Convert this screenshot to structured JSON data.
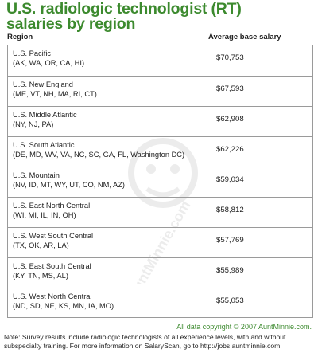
{
  "title_line1": "U.S. radiologic technologist (RT)",
  "title_line2": "salaries by region",
  "header": {
    "region": "Region",
    "salary": "Average base salary"
  },
  "chart_data": {
    "type": "table",
    "columns": [
      "Region",
      "Average base salary"
    ],
    "rows": [
      {
        "name": "U.S. Pacific",
        "states": "(AK, WA, OR, CA, HI)",
        "salary": "$70,753"
      },
      {
        "name": "U.S. New England",
        "states": "(ME, VT, NH, MA, RI, CT)",
        "salary": "$67,593"
      },
      {
        "name": "U.S. Middle Atlantic",
        "states": "(NY, NJ, PA)",
        "salary": "$62,908"
      },
      {
        "name": "U.S. South Atlantic",
        "states": "(DE, MD, WV, VA, NC, SC, GA, FL, Washington DC)",
        "salary": "$62,226"
      },
      {
        "name": "U.S. Mountain",
        "states": "(NV, ID, MT, WY, UT, CO, NM, AZ)",
        "salary": "$59,034"
      },
      {
        "name": "U.S. East North Central",
        "states": "(WI, MI, IL, IN, OH)",
        "salary": "$58,812"
      },
      {
        "name": "U.S. West South Central",
        "states": "(TX, OK, AR, LA)",
        "salary": "$57,769"
      },
      {
        "name": "U.S. East South Central",
        "states": "(KY, TN, MS, AL)",
        "salary": "$55,989"
      },
      {
        "name": "U.S. West North Central",
        "states": "(ND, SD, NE, KS, MN, IA, MO)",
        "salary": "$55,053"
      }
    ]
  },
  "copyright": "All data copyright © 2007 AuntMinnie.com.",
  "note": "Note: Survey results include radiologic technologists of all experience levels, with and without subspecialty training. For more information on SalaryScan, go to http://jobs.auntminnie.com.",
  "watermark_text": "AuntMinnie.com",
  "colors": {
    "title": "#3c8a2e",
    "border": "#9a9a9a",
    "text": "#1e1e1e"
  }
}
